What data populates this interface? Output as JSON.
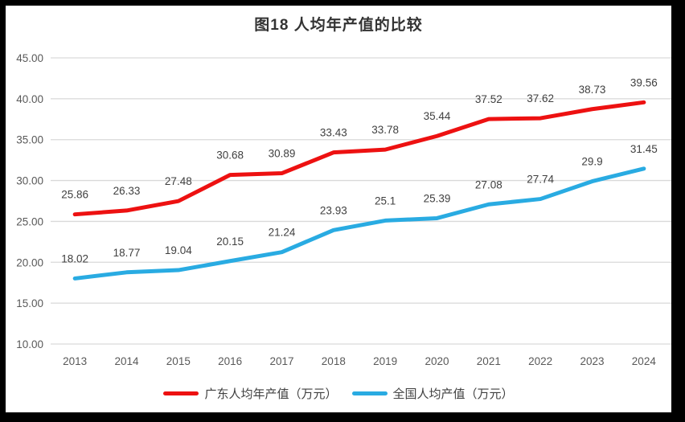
{
  "title": "图18 人均年产值的比较",
  "chart_data": {
    "type": "line",
    "title": "图18 人均年产值的比较",
    "categories": [
      "2013",
      "2014",
      "2015",
      "2016",
      "2017",
      "2018",
      "2019",
      "2020",
      "2021",
      "2022",
      "2023",
      "2024"
    ],
    "series": [
      {
        "name": "广东人均年产值（万元）",
        "color": "#ed1111",
        "values": [
          25.86,
          26.33,
          27.48,
          30.68,
          30.89,
          33.43,
          33.78,
          35.44,
          37.52,
          37.62,
          38.73,
          39.56
        ]
      },
      {
        "name": "全国人均产值（万元）",
        "color": "#29abe2",
        "values": [
          18.02,
          18.77,
          19.04,
          20.15,
          21.24,
          23.93,
          25.1,
          25.39,
          27.08,
          27.74,
          29.9,
          31.45
        ]
      }
    ],
    "ylim": [
      10,
      45
    ],
    "ytick_step": 5,
    "ytick_label_format": "two_decimals",
    "grid": true,
    "legend_position": "bottom",
    "data_labels": true
  },
  "colors": {
    "frame": "#000000",
    "background": "#ffffff",
    "gridline": "#d9d9d9",
    "axis_text": "#595959",
    "data_label_text": "#404040",
    "title_text": "#333333",
    "legend_text": "#404040"
  }
}
